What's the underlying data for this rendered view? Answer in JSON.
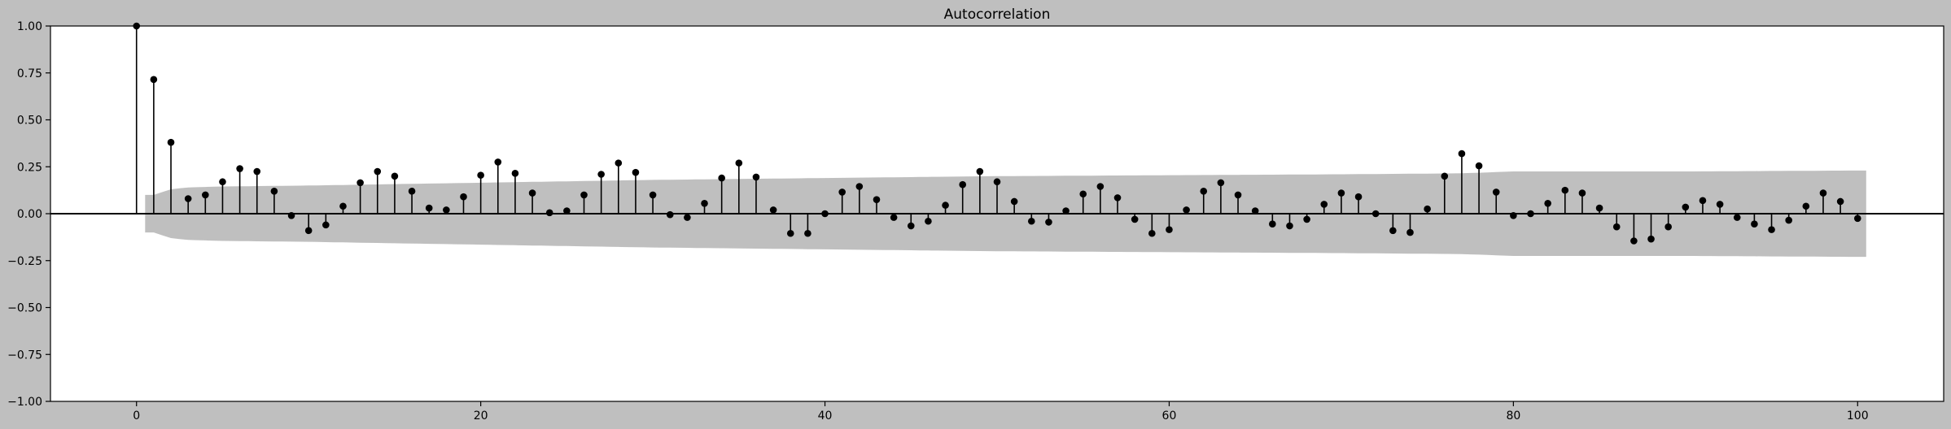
{
  "chart_data": {
    "type": "stem",
    "title": "Autocorrelation",
    "xlabel": "",
    "ylabel": "",
    "xlim": [
      -5,
      105
    ],
    "ylim": [
      -1.0,
      1.0
    ],
    "x_ticks": [
      0,
      20,
      40,
      60,
      80,
      100
    ],
    "y_ticks": [
      -1.0,
      -0.75,
      -0.5,
      -0.25,
      0.0,
      0.25,
      0.5,
      0.75,
      1.0
    ],
    "x_tick_labels": [
      "0",
      "20",
      "40",
      "60",
      "80",
      "100"
    ],
    "y_tick_labels": [
      "−1.00",
      "−0.75",
      "−0.50",
      "−0.25",
      "0.00",
      "0.25",
      "0.50",
      "0.75",
      "1.00"
    ],
    "grid": false,
    "colors": {
      "background": "#bfbfbf",
      "stem": "#000000",
      "confidence_band": "#bfbfbf",
      "plot_area": "#ffffff"
    },
    "lags": [
      0,
      1,
      2,
      3,
      4,
      5,
      6,
      7,
      8,
      9,
      10,
      11,
      12,
      13,
      14,
      15,
      16,
      17,
      18,
      19,
      20,
      21,
      22,
      23,
      24,
      25,
      26,
      27,
      28,
      29,
      30,
      31,
      32,
      33,
      34,
      35,
      36,
      37,
      38,
      39,
      40,
      41,
      42,
      43,
      44,
      45,
      46,
      47,
      48,
      49,
      50,
      51,
      52,
      53,
      54,
      55,
      56,
      57,
      58,
      59,
      60,
      61,
      62,
      63,
      64,
      65,
      66,
      67,
      68,
      69,
      70,
      71,
      72,
      73,
      74,
      75,
      76,
      77,
      78,
      79,
      80,
      81,
      82,
      83,
      84,
      85,
      86,
      87,
      88,
      89,
      90,
      91,
      92,
      93,
      94,
      95,
      96,
      97,
      98,
      99,
      100
    ],
    "values": [
      1.0,
      0.715,
      0.38,
      0.08,
      0.1,
      0.17,
      0.24,
      0.225,
      0.12,
      -0.01,
      -0.09,
      -0.06,
      0.04,
      0.165,
      0.225,
      0.2,
      0.12,
      0.03,
      0.02,
      0.09,
      0.205,
      0.275,
      0.215,
      0.11,
      0.005,
      0.015,
      0.1,
      0.21,
      0.27,
      0.22,
      0.1,
      -0.005,
      -0.02,
      0.055,
      0.19,
      0.27,
      0.195,
      0.02,
      -0.105,
      -0.105,
      0.0,
      0.115,
      0.145,
      0.075,
      -0.02,
      -0.065,
      -0.04,
      0.045,
      0.155,
      0.225,
      0.17,
      0.065,
      -0.04,
      -0.045,
      0.015,
      0.105,
      0.145,
      0.085,
      -0.03,
      -0.105,
      -0.085,
      0.02,
      0.12,
      0.165,
      0.1,
      0.015,
      -0.055,
      -0.065,
      -0.03,
      0.05,
      0.11,
      0.09,
      0.0,
      -0.09,
      -0.1,
      0.025,
      0.2,
      0.32,
      0.255,
      0.115,
      -0.01,
      0.0,
      0.055,
      0.125,
      0.11,
      0.03,
      -0.07,
      -0.145,
      -0.135,
      -0.07,
      0.035,
      0.07,
      0.05,
      -0.02,
      -0.055,
      -0.085,
      -0.035,
      0.04,
      0.11,
      0.065,
      -0.025
    ],
    "confidence_band": {
      "lags": [
        1,
        2,
        3,
        5,
        10,
        20,
        30,
        40,
        50,
        60,
        70,
        77,
        80,
        90,
        100
      ],
      "upper": [
        0.1,
        0.13,
        0.14,
        0.145,
        0.15,
        0.165,
        0.18,
        0.19,
        0.2,
        0.205,
        0.21,
        0.215,
        0.225,
        0.225,
        0.23
      ]
    }
  }
}
